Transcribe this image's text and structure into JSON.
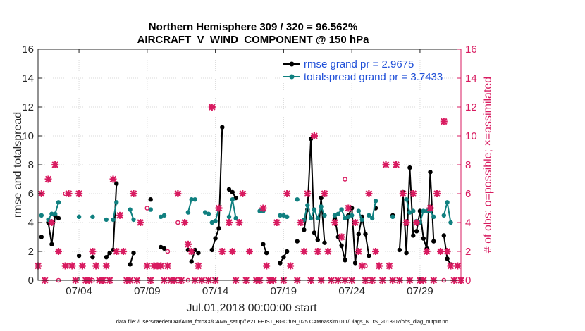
{
  "chart_data": {
    "type": "line",
    "title": "Northern Hemisphere 309 / 320 = 96.562%",
    "subtitle": "AIRCRAFT_V_WIND_COMPONENT @ 150 hPa",
    "xlabel": "Jul.01,2018 00:00:00 start",
    "ylabel": "rmse and totalspread",
    "ylabel_right": "# of obs: o=possible; ×=assimilated",
    "footer": "data file: /Users/raeder/DAI/ATM_forcXX/CAM6_setup/f.e21.FHIST_BGC.f09_025.CAM6assim.011/Diags_NTrS_2018-07/obs_diag_output.nc",
    "xlim": [
      1,
      32
    ],
    "ylim": [
      0,
      16
    ],
    "ylim_right": [
      0,
      16
    ],
    "xtick_values": [
      4,
      9,
      14,
      19,
      24,
      29
    ],
    "xtick_labels": [
      "07/04",
      "07/09",
      "07/14",
      "07/19",
      "07/24",
      "07/29"
    ],
    "ytick_values": [
      0,
      2,
      4,
      6,
      8,
      10,
      12,
      14,
      16
    ],
    "ytick_labels": [
      "0",
      "2",
      "4",
      "6",
      "8",
      "10",
      "12",
      "14",
      "16"
    ],
    "ytick_labels_right": [
      "0",
      "2",
      "4",
      "6",
      "8",
      "10",
      "12",
      "14",
      "16"
    ],
    "grid": true,
    "legend_position": "top-right",
    "colors": {
      "rmse": "#000000",
      "spread": "#108080",
      "obs": "#d81b60",
      "axis": "#262626",
      "right_axis": "#d81b60"
    },
    "legend": [
      {
        "label": "rmse grand pr = 2.9675",
        "color": "#000000"
      },
      {
        "label": "totalspread grand pr = 3.7433",
        "color": "#108080"
      }
    ],
    "series": [
      {
        "name": "rmse",
        "color": "#000000",
        "segments": [
          [
            [
              1.25,
              3.0
            ]
          ],
          [
            [
              1.75,
              4.0
            ],
            [
              2.0,
              2.5
            ],
            [
              2.25,
              4.5
            ],
            [
              2.5,
              4.3
            ]
          ],
          [
            [
              4.0,
              1.7
            ]
          ],
          [
            [
              5.0,
              1.6
            ]
          ],
          [
            [
              6.0,
              1.6
            ],
            [
              6.25,
              1.9
            ]
          ],
          [
            [
              6.5,
              2.1
            ],
            [
              6.75,
              6.7
            ]
          ],
          [
            [
              7.75,
              1.1
            ],
            [
              8.0,
              1.9
            ]
          ],
          [
            [
              9.25,
              5.6
            ]
          ],
          [
            [
              10.0,
              2.3
            ],
            [
              10.25,
              2.2
            ]
          ],
          [
            [
              12.0,
              2.1
            ]
          ],
          [
            [
              12.25,
              1.3
            ],
            [
              12.5,
              2.1
            ],
            [
              12.75,
              1.9
            ]
          ],
          [
            [
              13.75,
              2.1
            ],
            [
              14.0,
              2.9
            ],
            [
              14.25,
              3.6
            ],
            [
              14.5,
              10.6
            ]
          ],
          [
            [
              15.0,
              6.3
            ],
            [
              15.25,
              6.1
            ],
            [
              15.5,
              5.7
            ]
          ],
          [
            [
              17.5,
              2.5
            ],
            [
              17.75,
              1.9
            ]
          ],
          [
            [
              18.75,
              1.2
            ],
            [
              19.0,
              1.6
            ],
            [
              19.25,
              2.0
            ]
          ],
          [
            [
              20.0,
              2.7
            ]
          ],
          [
            [
              20.5,
              3.5
            ],
            [
              20.75,
              4.9
            ],
            [
              21.0,
              9.8
            ],
            [
              21.25,
              3.3
            ],
            [
              21.5,
              2.8
            ],
            [
              21.75,
              5.7
            ],
            [
              22.0,
              2.6
            ]
          ],
          [
            [
              22.75,
              4.3
            ],
            [
              23.0,
              3.0
            ],
            [
              23.25,
              2.4
            ],
            [
              23.5,
              1.4
            ],
            [
              23.75,
              4.5
            ],
            [
              24.0,
              5.0
            ],
            [
              24.25,
              1.2
            ],
            [
              24.5,
              3.2
            ],
            [
              24.75,
              4.4
            ],
            [
              25.0,
              3.2
            ],
            [
              25.25,
              1.7
            ]
          ],
          [
            [
              25.75,
              5.0
            ]
          ],
          [
            [
              27.0,
              4.5
            ]
          ],
          [
            [
              27.5,
              2.1
            ],
            [
              27.75,
              6.1
            ],
            [
              28.0,
              1.9
            ],
            [
              28.25,
              7.8
            ],
            [
              28.5,
              3.1
            ]
          ],
          [
            [
              28.75,
              3.4
            ],
            [
              29.0,
              4.8
            ],
            [
              29.25,
              2.9
            ],
            [
              29.5,
              2.2
            ],
            [
              29.75,
              7.5
            ],
            [
              30.0,
              2.7
            ]
          ],
          [
            [
              30.75,
              3.1
            ],
            [
              31.0,
              1.5
            ],
            [
              31.25,
              1.1
            ]
          ]
        ]
      },
      {
        "name": "totalspread",
        "color": "#108080",
        "segments": [
          [
            [
              1.25,
              4.5
            ]
          ],
          [
            [
              1.75,
              4.2
            ],
            [
              2.0,
              4.6
            ],
            [
              2.25,
              4.6
            ],
            [
              2.5,
              5.4
            ]
          ],
          [
            [
              4.0,
              4.4
            ]
          ],
          [
            [
              5.0,
              4.4
            ]
          ],
          [
            [
              6.0,
              4.2
            ]
          ],
          [
            [
              6.5,
              4.2
            ],
            [
              6.75,
              5.4
            ]
          ],
          [
            [
              7.75,
              4.9
            ],
            [
              8.0,
              4.2
            ]
          ],
          [
            [
              9.25,
              4.9
            ]
          ],
          [
            [
              10.0,
              4.4
            ],
            [
              10.25,
              4.5
            ]
          ],
          [
            [
              12.0,
              4.7
            ],
            [
              12.25,
              5.6
            ],
            [
              12.5,
              5.6
            ]
          ],
          [
            [
              13.25,
              4.7
            ],
            [
              13.5,
              4.6
            ]
          ],
          [
            [
              13.75,
              4.0
            ],
            [
              14.0,
              4.1
            ],
            [
              14.25,
              5.0
            ]
          ],
          [
            [
              15.0,
              4.4
            ],
            [
              15.25,
              5.6
            ],
            [
              15.5,
              4.3
            ]
          ],
          [
            [
              17.25,
              4.8
            ],
            [
              17.5,
              4.8
            ]
          ],
          [
            [
              18.75,
              4.5
            ],
            [
              19.0,
              4.5
            ],
            [
              19.25,
              4.4
            ]
          ],
          [
            [
              20.0,
              5.6
            ]
          ],
          [
            [
              20.5,
              4.2
            ],
            [
              20.75,
              5.2
            ],
            [
              21.0,
              4.3
            ],
            [
              21.25,
              4.9
            ],
            [
              21.5,
              4.3
            ],
            [
              21.75,
              5.1
            ],
            [
              22.0,
              4.5
            ]
          ],
          [
            [
              22.75,
              4.5
            ],
            [
              23.0,
              4.6
            ],
            [
              23.25,
              4.9
            ],
            [
              23.5,
              4.3
            ],
            [
              23.75,
              4.4
            ],
            [
              24.0,
              4.5
            ]
          ],
          [
            [
              24.5,
              4.8
            ],
            [
              24.75,
              4.2
            ]
          ],
          [
            [
              25.25,
              4.5
            ],
            [
              25.5,
              4.3
            ],
            [
              25.75,
              5.5
            ]
          ],
          [
            [
              27.0,
              4.4
            ]
          ],
          [
            [
              28.0,
              5.6
            ],
            [
              28.25,
              4.7
            ],
            [
              28.5,
              4.8
            ]
          ],
          [
            [
              28.75,
              4.1
            ],
            [
              29.0,
              4.0
            ],
            [
              29.25,
              4.8
            ],
            [
              29.5,
              4.8
            ],
            [
              29.75,
              4.8
            ],
            [
              30.0,
              4.4
            ]
          ],
          [
            [
              30.75,
              4.5
            ],
            [
              31.0,
              5.4
            ],
            [
              31.25,
              4.0
            ]
          ]
        ]
      }
    ],
    "obs_possible": [
      [
        1.0,
        1.0
      ],
      [
        1.25,
        6.0
      ],
      [
        1.5,
        0.0
      ],
      [
        1.75,
        7.0
      ],
      [
        2.0,
        4.0
      ],
      [
        2.25,
        8.0
      ],
      [
        2.5,
        2.0
      ],
      [
        3.0,
        1.0
      ],
      [
        3.25,
        6.0
      ],
      [
        3.5,
        1.0
      ],
      [
        3.75,
        0.0
      ],
      [
        4.0,
        6.0
      ],
      [
        4.25,
        1.0
      ],
      [
        4.5,
        0.0
      ],
      [
        4.75,
        0.0
      ],
      [
        5.0,
        2.0
      ],
      [
        5.25,
        1.0
      ],
      [
        5.5,
        0.0
      ],
      [
        5.75,
        0.0
      ],
      [
        6.0,
        1.0
      ],
      [
        6.25,
        0.0
      ],
      [
        6.5,
        7.0
      ],
      [
        6.75,
        2.0
      ],
      [
        7.0,
        4.5
      ],
      [
        7.25,
        2.0
      ],
      [
        7.5,
        0.0
      ],
      [
        7.75,
        0.0
      ],
      [
        8.0,
        6.0
      ],
      [
        8.25,
        0.0
      ],
      [
        8.5,
        4.0
      ],
      [
        9.0,
        1.0
      ],
      [
        9.25,
        0.0
      ],
      [
        9.5,
        1.0
      ],
      [
        9.75,
        1.0
      ],
      [
        10.0,
        1.0
      ],
      [
        10.25,
        0.0
      ],
      [
        10.5,
        1.0
      ],
      [
        10.75,
        0.0
      ],
      [
        11.0,
        0.0
      ],
      [
        11.25,
        6.0
      ],
      [
        11.5,
        0.0
      ],
      [
        11.75,
        4.0
      ],
      [
        12.0,
        2.5
      ],
      [
        12.25,
        2.0
      ],
      [
        12.5,
        0.0
      ],
      [
        12.75,
        1.0
      ],
      [
        13.0,
        0.0
      ],
      [
        13.5,
        0.0
      ],
      [
        13.75,
        12.0
      ],
      [
        14.0,
        0.0
      ],
      [
        14.25,
        5.0
      ],
      [
        14.5,
        2.0
      ],
      [
        15.0,
        4.0
      ],
      [
        15.25,
        2.0
      ],
      [
        15.5,
        0.0
      ],
      [
        15.75,
        4.0
      ],
      [
        16.0,
        6.0
      ],
      [
        16.25,
        0.0
      ],
      [
        16.5,
        2.0
      ],
      [
        17.0,
        0.0
      ],
      [
        17.25,
        0.0
      ],
      [
        17.5,
        5.0
      ],
      [
        17.75,
        1.0
      ],
      [
        18.0,
        0.0
      ],
      [
        18.25,
        0.0
      ],
      [
        18.5,
        4.0
      ],
      [
        19.0,
        0.0
      ],
      [
        19.25,
        6.0
      ],
      [
        19.5,
        1.0
      ],
      [
        20.0,
        0.0
      ],
      [
        20.25,
        4.0
      ],
      [
        20.5,
        2.0
      ],
      [
        20.75,
        6.0
      ],
      [
        21.0,
        0.0
      ],
      [
        21.25,
        10.0
      ],
      [
        21.5,
        2.0
      ],
      [
        21.75,
        0.0
      ],
      [
        22.0,
        6.0
      ],
      [
        22.25,
        2.0
      ],
      [
        22.5,
        0.0
      ],
      [
        22.75,
        4.0
      ],
      [
        23.0,
        0.0
      ],
      [
        23.25,
        3.0
      ],
      [
        23.5,
        0.0
      ],
      [
        23.75,
        5.0
      ],
      [
        24.0,
        0.0
      ],
      [
        24.25,
        4.0
      ],
      [
        24.5,
        2.0
      ],
      [
        24.75,
        1.0
      ],
      [
        25.0,
        0.0
      ],
      [
        25.25,
        6.0
      ],
      [
        25.5,
        0.0
      ],
      [
        25.75,
        2.0
      ],
      [
        26.0,
        1.0
      ],
      [
        26.25,
        0.0
      ],
      [
        26.5,
        8.0
      ],
      [
        26.75,
        1.0
      ],
      [
        27.0,
        0.0
      ],
      [
        27.25,
        8.0
      ],
      [
        27.5,
        0.0
      ],
      [
        27.75,
        6.0
      ],
      [
        28.0,
        4.0
      ],
      [
        28.25,
        0.0
      ],
      [
        28.5,
        6.0
      ],
      [
        28.75,
        4.0
      ],
      [
        29.0,
        0.0
      ],
      [
        29.25,
        0.0
      ],
      [
        29.5,
        2.0
      ],
      [
        29.75,
        5.0
      ],
      [
        30.0,
        0.0
      ],
      [
        30.25,
        6.0
      ],
      [
        30.5,
        2.0
      ],
      [
        30.75,
        11.0
      ],
      [
        31.0,
        2.0
      ],
      [
        31.25,
        1.0
      ],
      [
        31.5,
        0.0
      ],
      [
        31.75,
        1.0
      ],
      [
        32.0,
        0.0
      ]
    ],
    "obs_possible_extra": [
      [
        2.0,
        4.0
      ],
      [
        2.5,
        0.0
      ],
      [
        3.0,
        6.0
      ],
      [
        3.25,
        1.0
      ],
      [
        5.0,
        0.0
      ],
      [
        9.0,
        5.0
      ],
      [
        9.5,
        1.0
      ],
      [
        10.0,
        1.0
      ],
      [
        10.5,
        2.0
      ],
      [
        11.25,
        4.0
      ],
      [
        12.0,
        0.0
      ],
      [
        21.75,
        0.0
      ],
      [
        23.5,
        7.0
      ],
      [
        25.0,
        1.0
      ],
      [
        30.75,
        0.0
      ]
    ]
  }
}
